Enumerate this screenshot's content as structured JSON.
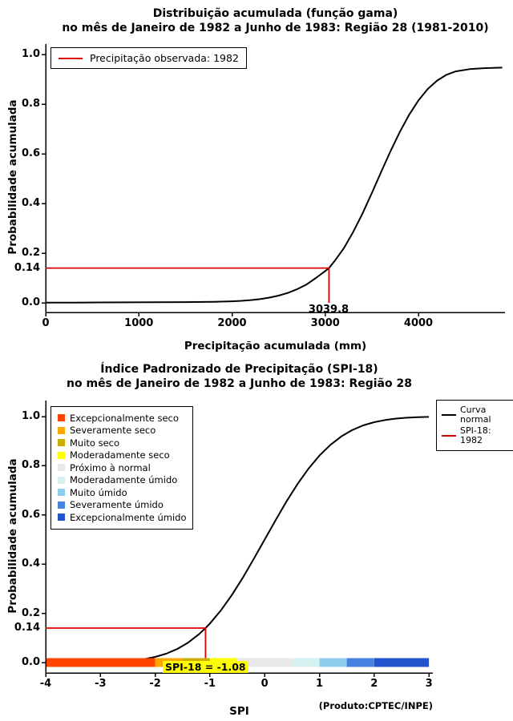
{
  "chart_data": [
    {
      "type": "line",
      "title_line1": "Distribuição acumulada (função gama)",
      "title_line2": "no mês de Janeiro de 1982 a Junho de 1983: Região 28 (1981-2010)",
      "xlabel": "Precipitação acumulada (mm)",
      "ylabel": "Probabilidade acumulada",
      "xlim": [
        0,
        4930
      ],
      "ylim": [
        0,
        1
      ],
      "x_ticks": [
        "0",
        "1000",
        "2000",
        "3000",
        "4000"
      ],
      "x_tick_values": [
        0,
        1000,
        2000,
        3000,
        4000
      ],
      "y_ticks": [
        "0.0",
        "0.2",
        "0.4",
        "0.6",
        "0.8",
        "1.0"
      ],
      "y_tick_values": [
        0,
        0.2,
        0.4,
        0.6,
        0.8,
        1.0
      ],
      "legend": [
        {
          "label": "Precipitação observada: 1982",
          "color": "#dd0000"
        }
      ],
      "curve_color": "#000000",
      "annotation": {
        "x": 3039.8,
        "y": 0.14,
        "x_label": "3039.8",
        "y_label": "0.14",
        "color": "#dd0000"
      },
      "curve": [
        [
          0,
          0.001
        ],
        [
          300,
          0.001
        ],
        [
          600,
          0.0015
        ],
        [
          900,
          0.002
        ],
        [
          1200,
          0.0025
        ],
        [
          1500,
          0.003
        ],
        [
          1800,
          0.004
        ],
        [
          2000,
          0.006
        ],
        [
          2100,
          0.008
        ],
        [
          2200,
          0.011
        ],
        [
          2300,
          0.015
        ],
        [
          2400,
          0.021
        ],
        [
          2500,
          0.029
        ],
        [
          2600,
          0.04
        ],
        [
          2700,
          0.055
        ],
        [
          2800,
          0.074
        ],
        [
          2900,
          0.1
        ],
        [
          3000,
          0.128
        ],
        [
          3039.8,
          0.14
        ],
        [
          3100,
          0.168
        ],
        [
          3200,
          0.22
        ],
        [
          3300,
          0.285
        ],
        [
          3400,
          0.36
        ],
        [
          3500,
          0.442
        ],
        [
          3600,
          0.527
        ],
        [
          3700,
          0.61
        ],
        [
          3800,
          0.688
        ],
        [
          3900,
          0.757
        ],
        [
          4000,
          0.815
        ],
        [
          4100,
          0.861
        ],
        [
          4200,
          0.895
        ],
        [
          4300,
          0.918
        ],
        [
          4400,
          0.932
        ],
        [
          4550,
          0.941
        ],
        [
          4700,
          0.945
        ],
        [
          4900,
          0.947
        ]
      ]
    },
    {
      "type": "line",
      "title_line1": "Índice Padronizado de Precipitação (SPI-18)",
      "title_line2": "no mês de Janeiro de 1982 a Junho de 1983: Região 28",
      "xlabel": "SPI",
      "ylabel": "Probabilidade acumulada",
      "credit": "(Produto:CPTEC/INPE)",
      "xlim": [
        -4,
        3
      ],
      "ylim": [
        0,
        1
      ],
      "x_ticks": [
        "-4",
        "-3",
        "-2",
        "-1",
        "0",
        "1",
        "2",
        "3"
      ],
      "x_tick_values": [
        -4,
        -3,
        -2,
        -1,
        0,
        1,
        2,
        3
      ],
      "y_ticks": [
        "0.0",
        "0.2",
        "0.4",
        "0.6",
        "0.8",
        "1.0"
      ],
      "y_tick_values": [
        0,
        0.2,
        0.4,
        0.6,
        0.8,
        1.0
      ],
      "categories": [
        {
          "label": "Excepcionalmente seco",
          "color": "#ff4500"
        },
        {
          "label": "Severamente seco",
          "color": "#ffa500"
        },
        {
          "label": "Muito seco",
          "color": "#cdad00"
        },
        {
          "label": "Moderadamente seco",
          "color": "#ffff00"
        },
        {
          "label": "Próximo à normal",
          "color": "#e8e8e8"
        },
        {
          "label": "Moderadamente úmido",
          "color": "#d5f0f0"
        },
        {
          "label": "Muito úmido",
          "color": "#8fccee"
        },
        {
          "label": "Severamente úmido",
          "color": "#4682e1"
        },
        {
          "label": "Excepcionalmente úmido",
          "color": "#2253cc"
        }
      ],
      "legend": [
        {
          "label": "Curva normal",
          "color": "#000000"
        },
        {
          "label": "SPI-18: 1982",
          "color": "#dd0000"
        }
      ],
      "colorbar": [
        {
          "from": -4,
          "to": -2,
          "color": "#ff4500"
        },
        {
          "from": -2,
          "to": -1.5,
          "color": "#ffa500"
        },
        {
          "from": -1.5,
          "to": -1,
          "color": "#cdad00"
        },
        {
          "from": -1,
          "to": -0.5,
          "color": "#ffff00"
        },
        {
          "from": -0.5,
          "to": 0.5,
          "color": "#e8e8e8"
        },
        {
          "from": 0.5,
          "to": 1,
          "color": "#d5f0f0"
        },
        {
          "from": 1,
          "to": 1.5,
          "color": "#8fccee"
        },
        {
          "from": 1.5,
          "to": 2,
          "color": "#4682e1"
        },
        {
          "from": 2,
          "to": 3,
          "color": "#2253cc"
        }
      ],
      "curve_color": "#000000",
      "annotation": {
        "x": -1.08,
        "y": 0.14,
        "y_label": "0.14",
        "spi_label": "SPI-18 = -1.08",
        "spi_label_bg": "#ffff00",
        "color": "#dd0000"
      },
      "curve": [
        [
          -4,
          0.0001
        ],
        [
          -3.6,
          0.0002
        ],
        [
          -3.2,
          0.0007
        ],
        [
          -3,
          0.0013
        ],
        [
          -2.8,
          0.0026
        ],
        [
          -2.6,
          0.0047
        ],
        [
          -2.4,
          0.0082
        ],
        [
          -2.2,
          0.0139
        ],
        [
          -2,
          0.0228
        ],
        [
          -1.8,
          0.0359
        ],
        [
          -1.6,
          0.0548
        ],
        [
          -1.4,
          0.0808
        ],
        [
          -1.2,
          0.1151
        ],
        [
          -1.08,
          0.14
        ],
        [
          -1,
          0.1587
        ],
        [
          -0.8,
          0.2119
        ],
        [
          -0.6,
          0.2743
        ],
        [
          -0.4,
          0.3446
        ],
        [
          -0.2,
          0.4207
        ],
        [
          0,
          0.5
        ],
        [
          0.2,
          0.5793
        ],
        [
          0.4,
          0.6554
        ],
        [
          0.6,
          0.7257
        ],
        [
          0.8,
          0.7881
        ],
        [
          1,
          0.8413
        ],
        [
          1.2,
          0.8849
        ],
        [
          1.4,
          0.9192
        ],
        [
          1.6,
          0.9452
        ],
        [
          1.8,
          0.9641
        ],
        [
          2,
          0.9772
        ],
        [
          2.2,
          0.9861
        ],
        [
          2.4,
          0.9918
        ],
        [
          2.6,
          0.9953
        ],
        [
          2.8,
          0.9974
        ],
        [
          3,
          0.9987
        ]
      ]
    }
  ]
}
